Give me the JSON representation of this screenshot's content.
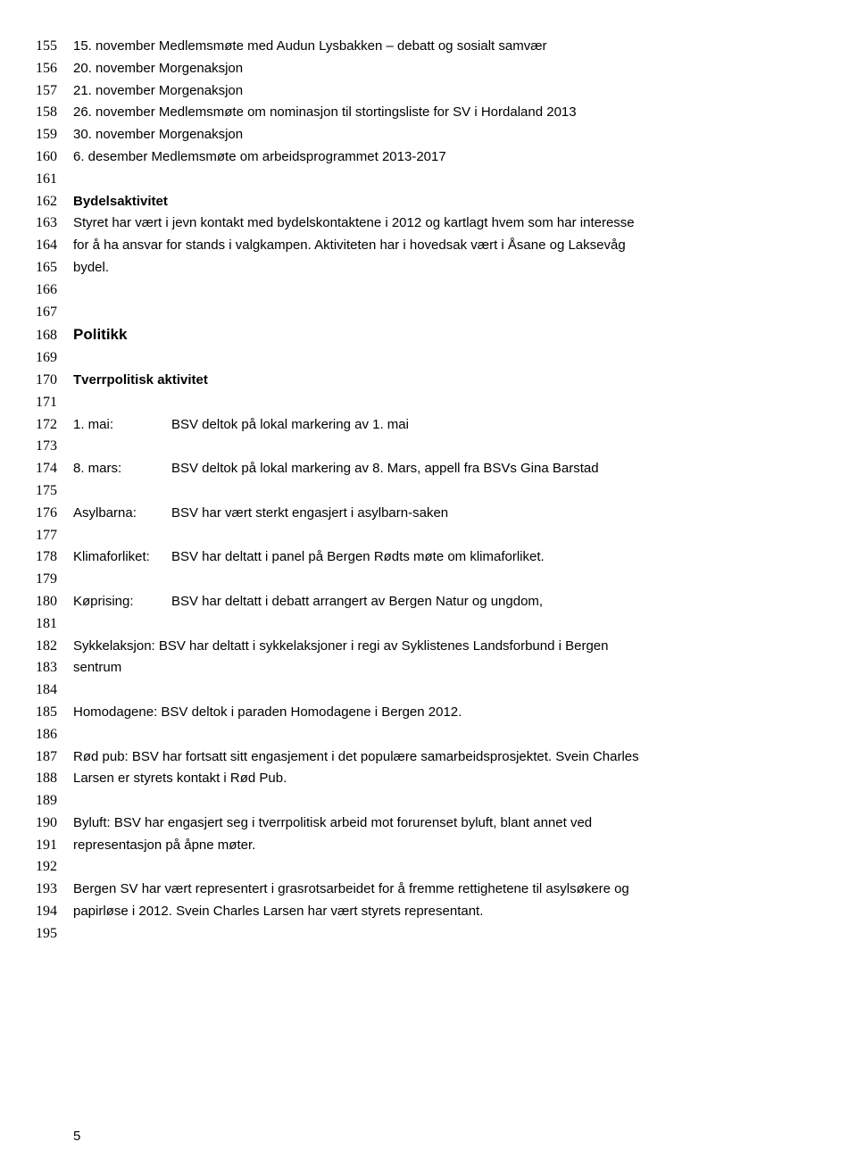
{
  "lines": [
    {
      "n": "155",
      "text": "15. november Medlemsmøte med Audun Lysbakken – debatt og sosialt samvær"
    },
    {
      "n": "156",
      "text": "20. november Morgenaksjon"
    },
    {
      "n": "157",
      "text": "21. november Morgenaksjon"
    },
    {
      "n": "158",
      "text": "26. november Medlemsmøte om nominasjon til stortingsliste for SV i Hordaland 2013"
    },
    {
      "n": "159",
      "text": "30. november Morgenaksjon"
    },
    {
      "n": "160",
      "text": "6. desember   Medlemsmøte om arbeidsprogrammet 2013-2017"
    },
    {
      "n": "161",
      "text": ""
    },
    {
      "n": "162",
      "text": "Bydelsaktivitet",
      "bold": true
    },
    {
      "n": "163",
      "text": "Styret har vært i jevn kontakt med bydelskontaktene i 2012 og kartlagt hvem som har interesse"
    },
    {
      "n": "164",
      "text": "for å ha ansvar for stands i valgkampen. Aktiviteten har i hovedsak vært i Åsane og Laksevåg"
    },
    {
      "n": "165",
      "text": "bydel."
    },
    {
      "n": "166",
      "text": ""
    },
    {
      "n": "167",
      "text": ""
    },
    {
      "n": "168",
      "text": "Politikk",
      "heading": true
    },
    {
      "n": "169",
      "text": ""
    },
    {
      "n": "170",
      "text": "Tverrpolitisk aktivitet",
      "bold": true
    },
    {
      "n": "171",
      "text": ""
    },
    {
      "n": "172",
      "label": "1. mai:",
      "rest": "BSV deltok på lokal markering av 1. mai"
    },
    {
      "n": "173",
      "text": ""
    },
    {
      "n": "174",
      "label": "8. mars:",
      "rest": "BSV deltok på lokal markering av 8. Mars, appell fra BSVs Gina Barstad"
    },
    {
      "n": "175",
      "text": ""
    },
    {
      "n": "176",
      "label": "Asylbarna:",
      "rest": "BSV har vært sterkt engasjert i asylbarn-saken"
    },
    {
      "n": "177",
      "text": ""
    },
    {
      "n": "178",
      "label": "Klimaforliket:",
      "rest": "BSV har deltatt i panel på Bergen Rødts møte om klimaforliket."
    },
    {
      "n": "179",
      "text": ""
    },
    {
      "n": "180",
      "label": "Køprising:",
      "rest": "BSV har deltatt i debatt arrangert av Bergen Natur og ungdom,"
    },
    {
      "n": "181",
      "text": ""
    },
    {
      "n": "182",
      "text": "Sykkelaksjon: BSV har deltatt i sykkelaksjoner i regi av Syklistenes Landsforbund i Bergen"
    },
    {
      "n": "183",
      "text": "sentrum"
    },
    {
      "n": "184",
      "text": ""
    },
    {
      "n": "185",
      "text": "Homodagene: BSV deltok i paraden Homodagene i Bergen 2012."
    },
    {
      "n": "186",
      "text": ""
    },
    {
      "n": "187",
      "text": "Rød pub: BSV har fortsatt sitt engasjement i det populære samarbeidsprosjektet. Svein Charles"
    },
    {
      "n": "188",
      "text": "Larsen er styrets kontakt i Rød Pub."
    },
    {
      "n": "189",
      "text": ""
    },
    {
      "n": "190",
      "text": "Byluft:  BSV har engasjert seg i tverrpolitisk arbeid mot forurenset byluft, blant annet ved"
    },
    {
      "n": "191",
      "text": "representasjon på åpne møter."
    },
    {
      "n": "192",
      "text": ""
    },
    {
      "n": "193",
      "text": "Bergen SV har vært representert i grasrotsarbeidet for å fremme rettighetene til asylsøkere og"
    },
    {
      "n": "194",
      "text": "papirløse i 2012. Svein Charles Larsen har vært styrets representant."
    },
    {
      "n": "195",
      "text": ""
    }
  ],
  "pageNumber": "5"
}
